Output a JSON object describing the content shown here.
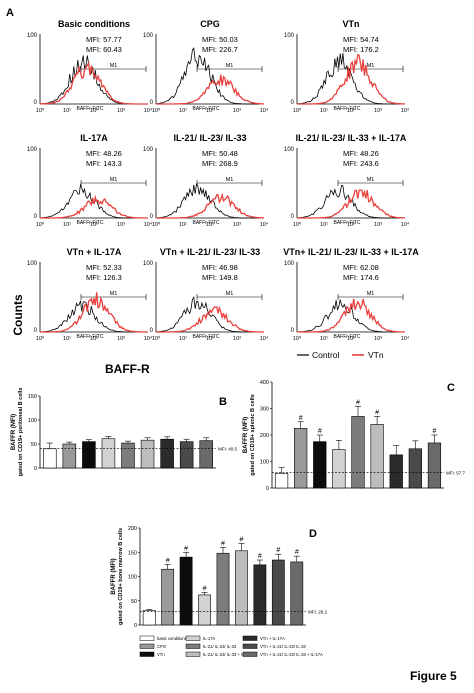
{
  "figure_label": "Figure 5",
  "colors": {
    "control": "#000000",
    "vtn": "#e8403c",
    "bar_white": "#ffffff",
    "bar_dark": "#222222"
  },
  "chart_data": [
    {
      "id": "A",
      "type": "histogram",
      "panel_letter": "A",
      "ylabel": "Counts",
      "xlabel": "BAFF-R",
      "axis_title": "BAFFr FITC",
      "gate_label": "M1",
      "ylim": [
        0,
        100
      ],
      "ytick_labels": [
        "0",
        "100"
      ],
      "xscale": "log",
      "xlim": [
        1,
        10000
      ],
      "xtick_labels": [
        "10⁰",
        "10¹",
        "10²",
        "10³",
        "10⁴"
      ],
      "legend": {
        "position": "bottom-right",
        "control": "Control",
        "vtn": "VTn"
      },
      "panels": [
        {
          "title": "Basic conditions",
          "mfi_control": "MFI: 57.77",
          "mfi_vtn": "MFI: 60.43",
          "control_peak": 40,
          "control_height": 42,
          "vtn_peak": 55,
          "vtn_height": 36
        },
        {
          "title": "CPG",
          "mfi_control": "MFI: 50.03",
          "mfi_vtn": "MFI: 226.7",
          "control_peak": 35,
          "control_height": 48,
          "vtn_peak": 250,
          "vtn_height": 24
        },
        {
          "title": "VTn",
          "mfi_control": "MFI: 54.74",
          "mfi_vtn": "MFI: 176.2",
          "control_peak": 38,
          "control_height": 42,
          "vtn_peak": 180,
          "vtn_height": 40
        },
        {
          "title": "IL-17A",
          "mfi_control": "MFI: 48.26",
          "mfi_vtn": "MFI: 143.3",
          "control_peak": 35,
          "control_height": 28,
          "vtn_peak": 140,
          "vtn_height": 18
        },
        {
          "title": "IL-21/ IL-23/ IL-33",
          "mfi_control": "MFI: 50.48",
          "mfi_vtn": "MFI: 268.9",
          "control_peak": 35,
          "control_height": 30,
          "vtn_peak": 260,
          "vtn_height": 20
        },
        {
          "title": "IL-21/ IL-23/ IL-33 + IL-17A",
          "mfi_control": "MFI: 48.26",
          "mfi_vtn": "MFI: 243.6",
          "control_peak": 35,
          "control_height": 28,
          "vtn_peak": 240,
          "vtn_height": 25
        },
        {
          "title": "VTn + IL-17A",
          "mfi_control": "MFI: 52.33",
          "mfi_vtn": "MFI: 126.3",
          "control_peak": 38,
          "control_height": 26,
          "vtn_peak": 120,
          "vtn_height": 32
        },
        {
          "title": "VTn + IL-21/ IL-23/ IL-33",
          "mfi_control": "MFI: 46.98",
          "mfi_vtn": "MFI: 149.8",
          "control_peak": 35,
          "control_height": 30,
          "vtn_peak": 150,
          "vtn_height": 22
        },
        {
          "title": "VTn+ IL-21/ IL-23/ IL-33 + IL-17A",
          "mfi_control": "MFI: 62.08",
          "mfi_vtn": "MFI: 174.6",
          "control_peak": 42,
          "control_height": 28,
          "vtn_peak": 175,
          "vtn_height": 30
        }
      ]
    },
    {
      "id": "B",
      "type": "bar",
      "panel_letter": "B",
      "ylabel": "BAFFR (MFI)",
      "ylabel2": "gated on CD19+ peritoneal B cells",
      "ylim": [
        0,
        150
      ],
      "yticks": [
        0,
        50,
        100,
        150
      ],
      "ref_line": 40.5,
      "ref_label": "MFI: 40.5",
      "values": [
        40,
        50,
        55,
        61,
        52,
        58,
        60,
        55,
        57
      ],
      "errors": [
        12,
        4,
        4,
        5,
        4,
        5,
        5,
        5,
        6
      ],
      "significant": [
        false,
        false,
        false,
        false,
        false,
        false,
        false,
        false,
        false
      ]
    },
    {
      "id": "C",
      "type": "bar",
      "panel_letter": "C",
      "ylabel": "BAFFR (MFI)",
      "ylabel2": "gated on CD19+ splenic B cells",
      "ylim": [
        0,
        400
      ],
      "yticks": [
        0,
        100,
        200,
        300,
        400
      ],
      "ref_line": 57.7,
      "ref_label": "MFI: 57.7",
      "values": [
        55,
        225,
        175,
        145,
        270,
        240,
        125,
        148,
        170
      ],
      "errors": [
        22,
        25,
        25,
        35,
        38,
        30,
        35,
        30,
        30
      ],
      "significant": [
        false,
        true,
        true,
        false,
        true,
        true,
        false,
        false,
        true
      ]
    },
    {
      "id": "D",
      "type": "bar",
      "panel_letter": "D",
      "ylabel": "BAFFR (MFI)",
      "ylabel2": "gated on CD19+ bone marrow B cells",
      "ylim": [
        0,
        200
      ],
      "yticks": [
        0,
        50,
        100,
        150,
        200
      ],
      "ref_line": 28.2,
      "ref_label": "MFI: 28.2",
      "values": [
        30,
        115,
        140,
        62,
        148,
        153,
        124,
        134,
        130
      ],
      "errors": [
        2,
        10,
        10,
        5,
        12,
        15,
        10,
        12,
        12
      ],
      "significant": [
        false,
        true,
        true,
        true,
        true,
        true,
        true,
        true,
        true
      ]
    }
  ],
  "bar_fills": [
    "#ffffff",
    "#9a9a9a",
    "#0c0c0c",
    "#d2d2d2",
    "#7c7c7c",
    "#bdbdbd",
    "#2b2b2b",
    "#4a4a4a",
    "#6a6a6a"
  ],
  "conditions_legend": [
    "basic conditions",
    "CPG",
    "VTn",
    "IL-17A",
    "IL-21/ IL-23/ IL-33",
    "IL-21/ IL-23/ IL-33 + IL-17A",
    "VTn + IL-17A",
    "VTn + IL-21/ IL-23/ IL-33",
    "VTn + IL-21/ IL-23/ IL-33 + IL-17A"
  ],
  "sig_mark": "#"
}
